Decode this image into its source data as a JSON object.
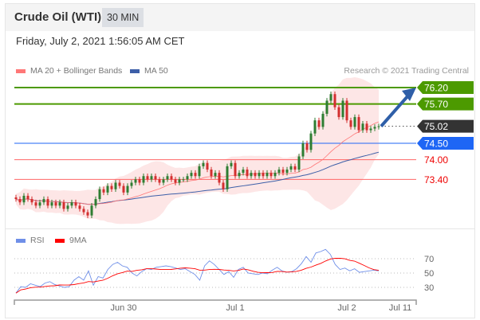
{
  "header": {
    "title": "Crude Oil (WTI)",
    "interval": "30 MIN"
  },
  "timestamp": "Friday, July 2, 2021 1:56:05 AM CET",
  "legend": {
    "ma20": "MA 20 + Bollinger Bands",
    "ma50": "MA 50",
    "rsi": "RSI",
    "ma9": "9MA"
  },
  "credit": "Research © 2021 Trading Central",
  "colors": {
    "up": "#2e7d32",
    "down": "#d32f2f",
    "ma20": "#f77",
    "ma50": "#3d5fa8",
    "resistance": "#4c9a00",
    "support": "#1e66f5",
    "rsi": "#6f8fe8",
    "ma9": "#f00"
  },
  "chart_data": [
    {
      "type": "candlestick",
      "title": "Crude Oil (WTI) 30 MIN",
      "ylim": [
        72.1,
        76.6
      ],
      "levels": [
        {
          "label": "76.20",
          "value": 76.2,
          "kind": "resistance"
        },
        {
          "label": "75.70",
          "value": 75.7,
          "kind": "resistance"
        },
        {
          "label": "75.02",
          "value": 75.02,
          "kind": "last"
        },
        {
          "label": "74.50",
          "value": 74.5,
          "kind": "pivot"
        },
        {
          "label": "74.00",
          "value": 74.0,
          "kind": "support"
        },
        {
          "label": "73.40",
          "value": 73.4,
          "kind": "support"
        }
      ],
      "closes": [
        72.8,
        72.7,
        72.9,
        72.8,
        72.7,
        72.6,
        72.7,
        72.8,
        72.6,
        72.7,
        72.6,
        72.7,
        72.5,
        72.6,
        72.7,
        72.6,
        72.5,
        72.4,
        72.3,
        72.6,
        72.8,
        73.1,
        73.0,
        73.2,
        73.1,
        73.3,
        73.2,
        73.0,
        73.2,
        73.3,
        73.4,
        73.3,
        73.5,
        73.4,
        73.5,
        73.4,
        73.3,
        73.4,
        73.5,
        73.4,
        73.3,
        73.4,
        73.4,
        73.5,
        73.6,
        73.5,
        73.8,
        73.9,
        73.7,
        73.5,
        73.6,
        73.3,
        73.1,
        73.8,
        73.9,
        73.5,
        73.6,
        73.7,
        73.5,
        73.6,
        73.5,
        73.6,
        73.5,
        73.6,
        73.5,
        73.6,
        73.7,
        73.6,
        73.7,
        73.8,
        73.7,
        74.1,
        74.5,
        74.3,
        74.8,
        75.2,
        75.0,
        75.4,
        75.8,
        76.0,
        75.6,
        75.3,
        75.8,
        75.2,
        75.0,
        75.3,
        74.9,
        75.1,
        74.9,
        74.95,
        75.0,
        75.02
      ],
      "forecast_target": 76.2
    },
    {
      "type": "line",
      "title": "RSI",
      "yticks": [
        "70",
        "50",
        "30"
      ],
      "ylim": [
        10,
        90
      ],
      "rsi": [
        22,
        31,
        30,
        35,
        33,
        31,
        36,
        38,
        34,
        32,
        30,
        31,
        40,
        45,
        40,
        53,
        33,
        45,
        43,
        55,
        62,
        65,
        60,
        58,
        50,
        46,
        52,
        56,
        55,
        58,
        59,
        60,
        59,
        57,
        55,
        56,
        52,
        48,
        40,
        60,
        67,
        62,
        55,
        48,
        52,
        44,
        55,
        58,
        50,
        49,
        48,
        50,
        49,
        54,
        58,
        53,
        51,
        52,
        56,
        63,
        73,
        65,
        78,
        80,
        83,
        76,
        62,
        55,
        57,
        53,
        56,
        51,
        52,
        53,
        54,
        53
      ]
    },
    {
      "type": "axis",
      "xticks": [
        "Jun 30",
        "Jul 1",
        "Jul 2",
        "Jul 11"
      ]
    }
  ]
}
